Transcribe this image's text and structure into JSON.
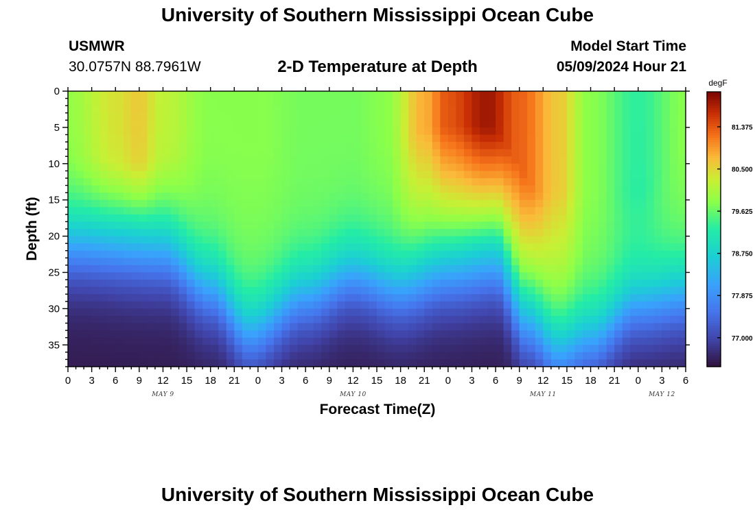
{
  "header": {
    "title": "University of Southern Mississippi Ocean Cube",
    "station_code": "USMWR",
    "station_coords": "30.0757N  88.7961W",
    "subtitle": "2-D Temperature at Depth",
    "start_label": "Model Start Time",
    "start_value": "05/09/2024 Hour 21"
  },
  "footer": {
    "title": "University of Southern Mississippi Ocean Cube"
  },
  "chart_data": {
    "type": "heatmap",
    "title": "2-D Temperature at Depth",
    "xlabel": "Forecast Time(Z)",
    "ylabel": "Depth (ft)",
    "x_start_hour": 0,
    "x_end_hour": 78,
    "x_ticks": [
      "0",
      "3",
      "6",
      "9",
      "12",
      "15",
      "18",
      "21",
      "0",
      "3",
      "6",
      "9",
      "12",
      "15",
      "18",
      "21",
      "0",
      "3",
      "6",
      "9",
      "12",
      "15",
      "18",
      "21",
      "0",
      "3",
      "6"
    ],
    "day_labels": [
      {
        "label": "MAY 9",
        "hour": 12
      },
      {
        "label": "MAY 10",
        "hour": 36
      },
      {
        "label": "MAY 11",
        "hour": 60
      },
      {
        "label": "MAY 12",
        "hour": 75
      }
    ],
    "y_ticks": [
      "0",
      "5",
      "10",
      "15",
      "20",
      "25",
      "30",
      "35"
    ],
    "y_tick_values": [
      0,
      5,
      10,
      15,
      20,
      25,
      30,
      35
    ],
    "ylim": [
      0,
      38
    ],
    "y_inverted": true,
    "colorbar": {
      "unit": "degF",
      "min": 76.4,
      "max": 82.1,
      "tick_labels": [
        "81.375",
        "80.500",
        "79.625",
        "78.750",
        "77.875",
        "77.000"
      ],
      "tick_values": [
        81.375,
        80.5,
        79.625,
        78.75,
        77.875,
        77.0
      ]
    },
    "surface_temperature_by_hour": {
      "hours": [
        0,
        6,
        9,
        12,
        18,
        24,
        30,
        36,
        40,
        45,
        48,
        53,
        57,
        62,
        66,
        72,
        78
      ],
      "values": [
        79.9,
        80.4,
        80.6,
        80.2,
        79.8,
        79.8,
        79.7,
        79.7,
        79.8,
        80.8,
        81.4,
        81.9,
        81.3,
        80.6,
        79.8,
        79.3,
        79.8
      ]
    },
    "warm_core_depth_ft_by_hour": {
      "hours": [
        0,
        9,
        18,
        24,
        36,
        48,
        53,
        60,
        72,
        78
      ],
      "values": [
        9,
        10,
        8,
        8,
        8,
        5,
        5,
        14,
        14,
        8
      ]
    },
    "thermocline_depth_ft_by_hour": {
      "hours": [
        0,
        12,
        18,
        23,
        30,
        36,
        42,
        48,
        54,
        58,
        62,
        66,
        72,
        78
      ],
      "values": [
        19,
        20,
        25,
        31,
        26,
        23,
        25,
        23,
        22,
        30,
        34,
        32,
        27,
        26
      ]
    },
    "bottom_temperature": 76.5
  }
}
